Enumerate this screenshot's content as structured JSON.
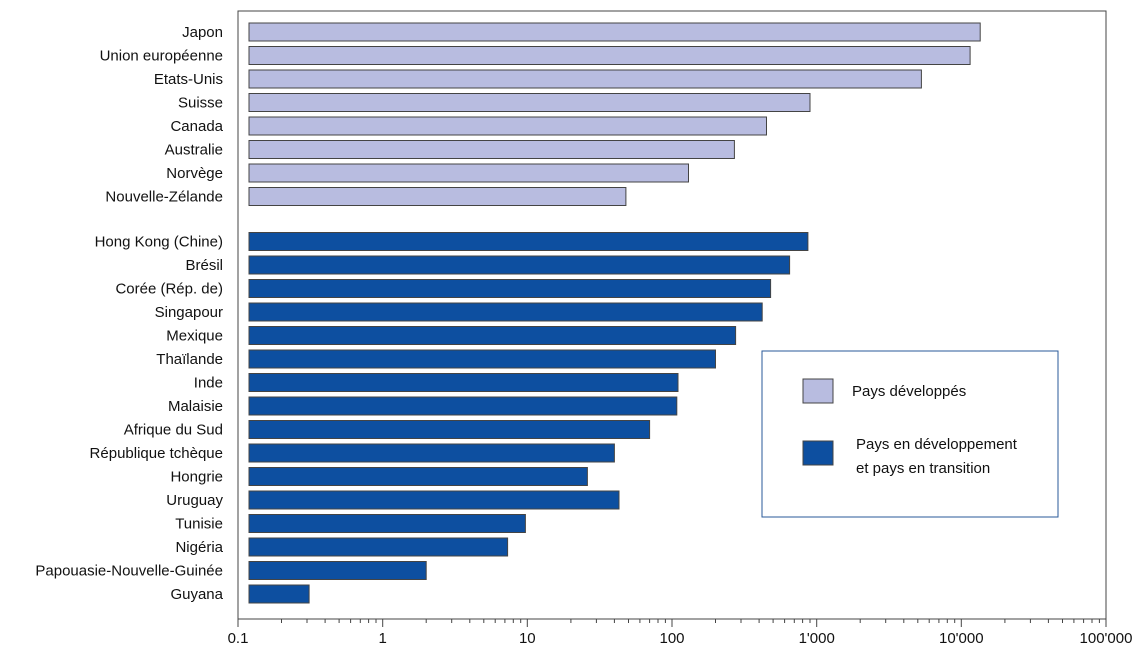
{
  "chart_data": {
    "type": "bar",
    "orientation": "horizontal",
    "x_scale": "log",
    "xlim": [
      0.1,
      100000
    ],
    "xticks": [
      0.1,
      1,
      10,
      100,
      1000,
      10000,
      100000
    ],
    "xtick_labels": [
      "0.1",
      "1",
      "10",
      "100",
      "1'000",
      "10'000",
      "100'000"
    ],
    "grid": false,
    "legend_position": "right",
    "colors": {
      "developed": "#b8bce0",
      "developing": "#0d4fa0",
      "axis": "#444444",
      "legend_border": "#2a5a9a"
    },
    "series": [
      {
        "name": "Pays développés",
        "categories": [
          "Japon",
          "Union européenne",
          "Etats-Unis",
          "Suisse",
          "Canada",
          "Australie",
          "Norvège",
          "Nouvelle-Zélande"
        ],
        "values": [
          13500,
          11500,
          5300,
          900,
          450,
          270,
          130,
          48
        ]
      },
      {
        "name": "Pays en développement et pays en transition",
        "categories": [
          "Hong Kong (Chine)",
          "Brésil",
          "Corée (Rép. de)",
          "Singapour",
          "Mexique",
          "Thaïlande",
          "Inde",
          "Malaisie",
          "Afrique du Sud",
          "République tchèque",
          "Hongrie",
          "Uruguay",
          "Tunisie",
          "Nigéria",
          "Papouasie-Nouvelle-Guinée",
          "Guyana"
        ],
        "values": [
          870,
          650,
          480,
          420,
          275,
          200,
          110,
          108,
          70,
          40,
          26,
          43,
          9.7,
          7.3,
          2.0,
          0.31
        ]
      }
    ],
    "legend": {
      "items": [
        {
          "lines": [
            "Pays développés"
          ]
        },
        {
          "lines": [
            "Pays en développement",
            "et pays en transition"
          ]
        }
      ]
    }
  }
}
